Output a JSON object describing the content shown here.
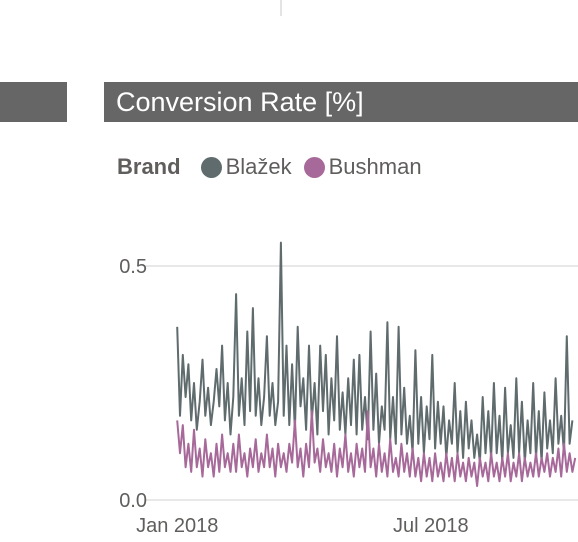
{
  "visual": {
    "title": "Conversion Rate [%]"
  },
  "chart_data": {
    "type": "line",
    "title": "Conversion Rate [%]",
    "legend": {
      "title": "Brand",
      "placement": "top-left"
    },
    "x_range": [
      "2017-12-09",
      "2018-10-14"
    ],
    "ylim": [
      0,
      0.55
    ],
    "grid": true,
    "x_ticks": [
      {
        "label": "Jan 2018",
        "date": "2018-01-01"
      },
      {
        "label": "Jul 2018",
        "date": "2018-07-01"
      }
    ],
    "y_ticks": [
      {
        "label": "0.0",
        "value": 0
      },
      {
        "label": "0.5",
        "value": 0.5
      }
    ],
    "series": [
      {
        "name": "Blažek",
        "color": "#5f6b6d",
        "start_date": "2018-01-01",
        "step_days": 2,
        "values": [
          0.37,
          0.18,
          0.31,
          0.22,
          0.29,
          0.17,
          0.25,
          0.15,
          0.21,
          0.3,
          0.18,
          0.24,
          0.16,
          0.21,
          0.28,
          0.2,
          0.33,
          0.17,
          0.25,
          0.14,
          0.22,
          0.44,
          0.18,
          0.26,
          0.16,
          0.36,
          0.19,
          0.41,
          0.18,
          0.26,
          0.16,
          0.22,
          0.35,
          0.18,
          0.25,
          0.16,
          0.21,
          0.55,
          0.18,
          0.33,
          0.16,
          0.29,
          0.15,
          0.37,
          0.2,
          0.26,
          0.15,
          0.33,
          0.17,
          0.25,
          0.14,
          0.33,
          0.19,
          0.31,
          0.14,
          0.26,
          0.17,
          0.35,
          0.15,
          0.23,
          0.14,
          0.26,
          0.16,
          0.3,
          0.14,
          0.31,
          0.15,
          0.22,
          0.13,
          0.36,
          0.15,
          0.27,
          0.12,
          0.2,
          0.15,
          0.38,
          0.13,
          0.22,
          0.12,
          0.37,
          0.14,
          0.24,
          0.12,
          0.18,
          0.1,
          0.32,
          0.12,
          0.22,
          0.1,
          0.2,
          0.13,
          0.31,
          0.11,
          0.21,
          0.12,
          0.2,
          0.09,
          0.17,
          0.12,
          0.25,
          0.1,
          0.19,
          0.09,
          0.21,
          0.11,
          0.17,
          0.09,
          0.14,
          0.08,
          0.22,
          0.1,
          0.19,
          0.09,
          0.25,
          0.1,
          0.18,
          0.08,
          0.24,
          0.1,
          0.16,
          0.09,
          0.26,
          0.1,
          0.21,
          0.08,
          0.17,
          0.1,
          0.25,
          0.09,
          0.19,
          0.08,
          0.23,
          0.11,
          0.17,
          0.1,
          0.26,
          0.12,
          0.18,
          0.1,
          0.35,
          0.12,
          0.17
        ]
      },
      {
        "name": "Bushman",
        "color": "#a66999",
        "start_date": "2018-01-01",
        "step_days": 2,
        "values": [
          0.17,
          0.1,
          0.16,
          0.07,
          0.12,
          0.06,
          0.15,
          0.07,
          0.11,
          0.05,
          0.13,
          0.07,
          0.1,
          0.05,
          0.12,
          0.06,
          0.14,
          0.07,
          0.1,
          0.06,
          0.12,
          0.06,
          0.14,
          0.07,
          0.1,
          0.05,
          0.11,
          0.07,
          0.13,
          0.06,
          0.1,
          0.07,
          0.14,
          0.07,
          0.11,
          0.05,
          0.12,
          0.07,
          0.1,
          0.06,
          0.12,
          0.08,
          0.17,
          0.07,
          0.11,
          0.05,
          0.12,
          0.07,
          0.19,
          0.08,
          0.11,
          0.06,
          0.13,
          0.07,
          0.1,
          0.06,
          0.12,
          0.05,
          0.11,
          0.07,
          0.14,
          0.06,
          0.1,
          0.05,
          0.12,
          0.07,
          0.11,
          0.06,
          0.19,
          0.07,
          0.11,
          0.05,
          0.12,
          0.06,
          0.1,
          0.05,
          0.13,
          0.06,
          0.09,
          0.05,
          0.12,
          0.06,
          0.1,
          0.05,
          0.11,
          0.05,
          0.09,
          0.04,
          0.1,
          0.05,
          0.09,
          0.04,
          0.1,
          0.05,
          0.08,
          0.04,
          0.1,
          0.05,
          0.09,
          0.04,
          0.1,
          0.05,
          0.08,
          0.04,
          0.09,
          0.05,
          0.08,
          0.03,
          0.09,
          0.05,
          0.08,
          0.04,
          0.1,
          0.05,
          0.08,
          0.04,
          0.09,
          0.05,
          0.1,
          0.04,
          0.08,
          0.05,
          0.1,
          0.04,
          0.09,
          0.05,
          0.08,
          0.05,
          0.1,
          0.05,
          0.09,
          0.06,
          0.1,
          0.05,
          0.09,
          0.06,
          0.11,
          0.05,
          0.12,
          0.06,
          0.1,
          0.06,
          0.09
        ]
      }
    ]
  }
}
